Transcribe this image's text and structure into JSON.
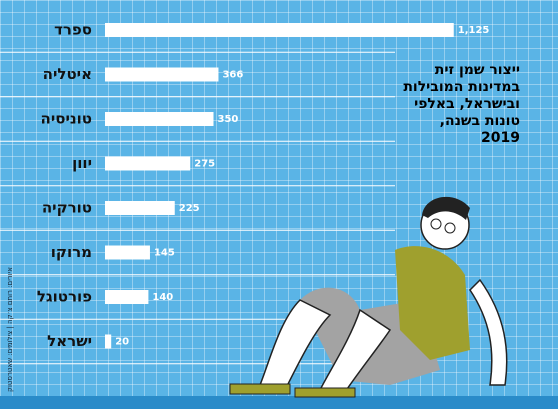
{
  "chart_data": {
    "type": "bar",
    "orientation": "horizontal",
    "title": "ייצור שמן זית במדינות המובילות ובישראל, באלפי טונות בשנה, 2019",
    "credit": "איורים: רותם צ׳קה | צילומים: שאטרסטוק",
    "categories": [
      "ספרד",
      "איטליה",
      "טוניסיה",
      "יוון",
      "טורקיה",
      "מרוקו",
      "פורטוגל",
      "ישראל"
    ],
    "values": [
      1125,
      366,
      350,
      275,
      225,
      145,
      140,
      20
    ],
    "value_labels": [
      "1,125",
      "366",
      "350",
      "275",
      "225",
      "145",
      "140",
      "20"
    ],
    "color": "#ffffff"
  }
}
